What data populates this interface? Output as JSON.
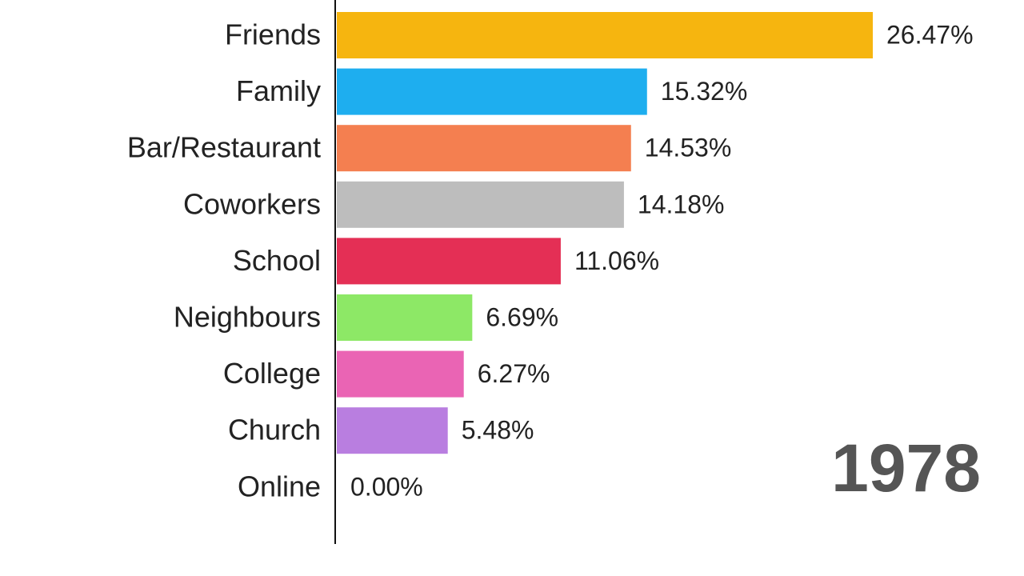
{
  "chart_data": {
    "type": "bar",
    "orientation": "horizontal",
    "categories": [
      "Friends",
      "Family",
      "Bar/Restaurant",
      "Coworkers",
      "School",
      "Neighbours",
      "College",
      "Church",
      "Online"
    ],
    "values": [
      26.47,
      15.32,
      14.53,
      14.18,
      11.06,
      6.69,
      6.27,
      5.48,
      0.0
    ],
    "value_labels": [
      "26.47%",
      "15.32%",
      "14.53%",
      "14.18%",
      "11.06%",
      "6.69%",
      "6.27%",
      "5.48%",
      "0.00%"
    ],
    "colors": [
      "#f6b50f",
      "#1eaeef",
      "#f47f50",
      "#bdbdbd",
      "#e42f55",
      "#8de866",
      "#ea64b4",
      "#b97ee0",
      "#4caf50"
    ],
    "annotation": "1978"
  }
}
